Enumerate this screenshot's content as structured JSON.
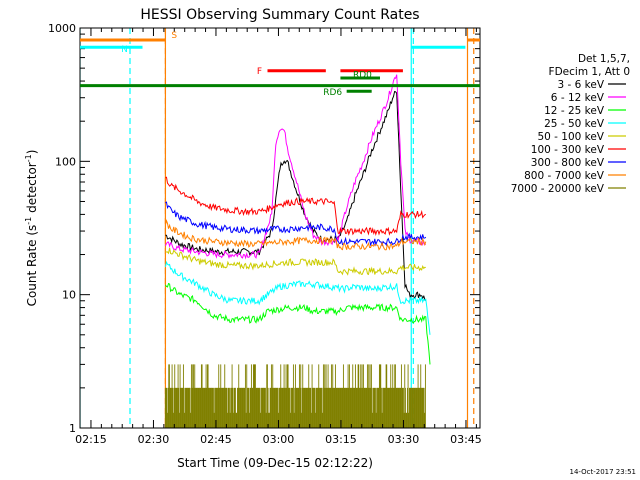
{
  "chart_data": {
    "type": "line",
    "title": "HESSI Observing Summary Count Rates",
    "xlabel": "Start Time (09-Dec-15 02:12:22)",
    "ylabel_main": "Count Rate (s",
    "ylabel_sup1": "-1",
    "ylabel_mid": " detector",
    "ylabel_sup2": "-1",
    "ylabel_end": ")",
    "yscale": "log",
    "ylim": [
      1,
      1000
    ],
    "xlim_minutes": [
      0,
      96
    ],
    "x_ticks": [
      {
        "t": 2.63,
        "label": "02:15"
      },
      {
        "t": 17.63,
        "label": "02:30"
      },
      {
        "t": 32.63,
        "label": "02:45"
      },
      {
        "t": 47.63,
        "label": "03:00"
      },
      {
        "t": 62.63,
        "label": "03:15"
      },
      {
        "t": 77.63,
        "label": "03:30"
      },
      {
        "t": 92.63,
        "label": "03:45"
      }
    ],
    "y_ticks": [
      {
        "v": 1,
        "label": "1"
      },
      {
        "v": 10,
        "label": "10"
      },
      {
        "v": 100,
        "label": "100"
      },
      {
        "v": 1000,
        "label": "1000"
      }
    ],
    "legend_header": [
      "Det 1,5,7,",
      "FDecim 1, Att 0"
    ],
    "series": [
      {
        "name": "3 - 6 keV",
        "color": "#000000",
        "points": [
          [
            20.5,
            28
          ],
          [
            24,
            24
          ],
          [
            28,
            22
          ],
          [
            33,
            21
          ],
          [
            38,
            21
          ],
          [
            43,
            21
          ],
          [
            46,
            30
          ],
          [
            48,
            90
          ],
          [
            49,
            105
          ],
          [
            50,
            95
          ],
          [
            52,
            60
          ],
          [
            54,
            40
          ],
          [
            56,
            30
          ],
          [
            58,
            26
          ],
          [
            60,
            26
          ],
          [
            62,
            26
          ],
          [
            64,
            35
          ],
          [
            66,
            55
          ],
          [
            68,
            80
          ],
          [
            70,
            120
          ],
          [
            72,
            170
          ],
          [
            74,
            240
          ],
          [
            75,
            300
          ],
          [
            76,
            340
          ],
          [
            77,
            60
          ],
          [
            78,
            12
          ],
          [
            79,
            10
          ],
          [
            80,
            10
          ],
          [
            82,
            10
          ],
          [
            83,
            9
          ]
        ]
      },
      {
        "name": "6 - 12 keV",
        "color": "#ff00ff",
        "points": [
          [
            20.5,
            24
          ],
          [
            24,
            22
          ],
          [
            28,
            21
          ],
          [
            33,
            20
          ],
          [
            38,
            20
          ],
          [
            43,
            20
          ],
          [
            46,
            40
          ],
          [
            47,
            140
          ],
          [
            48,
            180
          ],
          [
            49,
            170
          ],
          [
            50,
            120
          ],
          [
            52,
            70
          ],
          [
            54,
            40
          ],
          [
            56,
            28
          ],
          [
            58,
            25
          ],
          [
            60,
            25
          ],
          [
            62,
            26
          ],
          [
            64,
            45
          ],
          [
            66,
            70
          ],
          [
            68,
            100
          ],
          [
            70,
            150
          ],
          [
            72,
            210
          ],
          [
            74,
            300
          ],
          [
            75,
            380
          ],
          [
            76,
            460
          ],
          [
            77,
            100
          ],
          [
            78,
            30
          ],
          [
            79,
            26
          ],
          [
            81,
            25
          ],
          [
            83,
            24
          ]
        ]
      },
      {
        "name": "12 - 25 keV",
        "color": "#00ff00",
        "points": [
          [
            20.5,
            12
          ],
          [
            24,
            10
          ],
          [
            28,
            9
          ],
          [
            32,
            7
          ],
          [
            36,
            6.5
          ],
          [
            40,
            6.5
          ],
          [
            43,
            6.5
          ],
          [
            45,
            7.5
          ],
          [
            50,
            8
          ],
          [
            54,
            8
          ],
          [
            56,
            7.5
          ],
          [
            60,
            7.5
          ],
          [
            62,
            7.5
          ],
          [
            64,
            8
          ],
          [
            68,
            8
          ],
          [
            72,
            8
          ],
          [
            76,
            8
          ],
          [
            77,
            6.5
          ],
          [
            80,
            6.5
          ],
          [
            83,
            6.5
          ],
          [
            84,
            3
          ]
        ]
      },
      {
        "name": "25 - 50 keV",
        "color": "#00ffff",
        "points": [
          [
            20.5,
            17
          ],
          [
            24,
            14
          ],
          [
            28,
            12
          ],
          [
            32,
            10
          ],
          [
            36,
            9
          ],
          [
            40,
            9
          ],
          [
            43,
            9
          ],
          [
            45,
            10
          ],
          [
            48,
            11.5
          ],
          [
            52,
            12
          ],
          [
            56,
            12
          ],
          [
            60,
            11.5
          ],
          [
            63,
            11
          ],
          [
            66,
            11.5
          ],
          [
            70,
            11
          ],
          [
            74,
            11.5
          ],
          [
            76,
            11.5
          ],
          [
            77,
            9
          ],
          [
            80,
            9
          ],
          [
            83,
            9
          ],
          [
            84,
            5
          ]
        ]
      },
      {
        "name": "50 - 100 keV",
        "color": "#cccc00",
        "points": [
          [
            20.5,
            22
          ],
          [
            24,
            20
          ],
          [
            28,
            18
          ],
          [
            32,
            17
          ],
          [
            36,
            16.5
          ],
          [
            40,
            16.5
          ],
          [
            43,
            16.5
          ],
          [
            46,
            17
          ],
          [
            50,
            17.5
          ],
          [
            54,
            17.5
          ],
          [
            58,
            17.5
          ],
          [
            61,
            17.5
          ],
          [
            62,
            15
          ],
          [
            66,
            15
          ],
          [
            70,
            15
          ],
          [
            74,
            15
          ],
          [
            76,
            15
          ],
          [
            77,
            16
          ],
          [
            80,
            16
          ],
          [
            83,
            16
          ]
        ]
      },
      {
        "name": "100 - 300 keV",
        "color": "#ff0000",
        "points": [
          [
            20.5,
            75
          ],
          [
            22,
            65
          ],
          [
            24,
            60
          ],
          [
            26,
            55
          ],
          [
            28,
            50
          ],
          [
            32,
            45
          ],
          [
            36,
            43
          ],
          [
            40,
            42
          ],
          [
            43,
            42
          ],
          [
            45,
            44
          ],
          [
            48,
            48
          ],
          [
            52,
            50
          ],
          [
            56,
            50
          ],
          [
            59,
            50
          ],
          [
            61,
            48
          ],
          [
            62,
            30
          ],
          [
            64,
            30
          ],
          [
            68,
            30
          ],
          [
            72,
            30
          ],
          [
            76,
            30
          ],
          [
            77,
            40
          ],
          [
            80,
            40
          ],
          [
            83,
            40
          ]
        ]
      },
      {
        "name": "300 - 800 keV",
        "color": "#0000ff",
        "points": [
          [
            20.5,
            48
          ],
          [
            22,
            42
          ],
          [
            24,
            38
          ],
          [
            26,
            36
          ],
          [
            28,
            34
          ],
          [
            32,
            32
          ],
          [
            36,
            31
          ],
          [
            40,
            30.5
          ],
          [
            43,
            30
          ],
          [
            46,
            31
          ],
          [
            50,
            31
          ],
          [
            54,
            32
          ],
          [
            58,
            32
          ],
          [
            61,
            31
          ],
          [
            62,
            25
          ],
          [
            66,
            25
          ],
          [
            70,
            25
          ],
          [
            74,
            25
          ],
          [
            76,
            25
          ],
          [
            77,
            27
          ],
          [
            80,
            27
          ],
          [
            83,
            27
          ]
        ]
      },
      {
        "name": "800 - 7000 keV",
        "color": "#ff8000",
        "points": [
          [
            20.5,
            35
          ],
          [
            22,
            31
          ],
          [
            24,
            29
          ],
          [
            26,
            27
          ],
          [
            28,
            26
          ],
          [
            32,
            25
          ],
          [
            36,
            24.5
          ],
          [
            40,
            24
          ],
          [
            43,
            24
          ],
          [
            46,
            24.5
          ],
          [
            50,
            25
          ],
          [
            54,
            25.5
          ],
          [
            58,
            25.5
          ],
          [
            61,
            25.5
          ],
          [
            62,
            23
          ],
          [
            66,
            23
          ],
          [
            70,
            23
          ],
          [
            74,
            23
          ],
          [
            76,
            23
          ],
          [
            77,
            25
          ],
          [
            80,
            25
          ],
          [
            83,
            25
          ]
        ]
      },
      {
        "name": "7000 - 20000 keV",
        "color": "#808000",
        "points": [
          [
            20.5,
            2
          ],
          [
            83,
            2
          ]
        ]
      }
    ],
    "bars": [
      {
        "label": "S",
        "color": "#ff8000",
        "t0": -0.5,
        "t1": 20.5,
        "level": 0.97
      },
      {
        "label": "N",
        "color": "#00ffff",
        "t0": -0.5,
        "t1": 15,
        "level": 0.952
      },
      {
        "label": "",
        "color": "#00ffff",
        "t0": 79.5,
        "t1": 92.5,
        "level": 0.952
      },
      {
        "label": "",
        "color": "#ff8000",
        "t0": 93,
        "t1": 96,
        "level": 0.97
      },
      {
        "label": "F",
        "color": "#ff0000",
        "t0": 45,
        "t1": 59,
        "level": 0.893
      },
      {
        "label": "",
        "color": "#ff0000",
        "t0": 62.5,
        "t1": 77.5,
        "level": 0.893
      },
      {
        "label": "RD0",
        "color": "#008000",
        "t0": 62.5,
        "t1": 72,
        "level": 0.875
      },
      {
        "label": "",
        "color": "#008000",
        "t0": -0.5,
        "t1": 96,
        "level": 0.856
      },
      {
        "label": "RD6",
        "color": "#008000",
        "t0": 64,
        "t1": 70,
        "level": 0.842
      }
    ],
    "vlines": [
      {
        "t": 0,
        "color": "#00ffff",
        "style": "solid"
      },
      {
        "t": 12,
        "color": "#00ffff",
        "style": "dashed"
      },
      {
        "t": 20.5,
        "color": "#ff8000",
        "style": "dashed"
      },
      {
        "t": 20.5,
        "color": "#ff8000",
        "style": "solid"
      },
      {
        "t": 79.5,
        "color": "#00ffff",
        "style": "solid"
      },
      {
        "t": 80,
        "color": "#00ffff",
        "style": "dashed"
      },
      {
        "t": 93,
        "color": "#ff8000",
        "style": "solid"
      },
      {
        "t": 94.5,
        "color": "#ff8000",
        "style": "dashed"
      }
    ],
    "footer_stamp": "14-Oct-2017 23:51"
  }
}
